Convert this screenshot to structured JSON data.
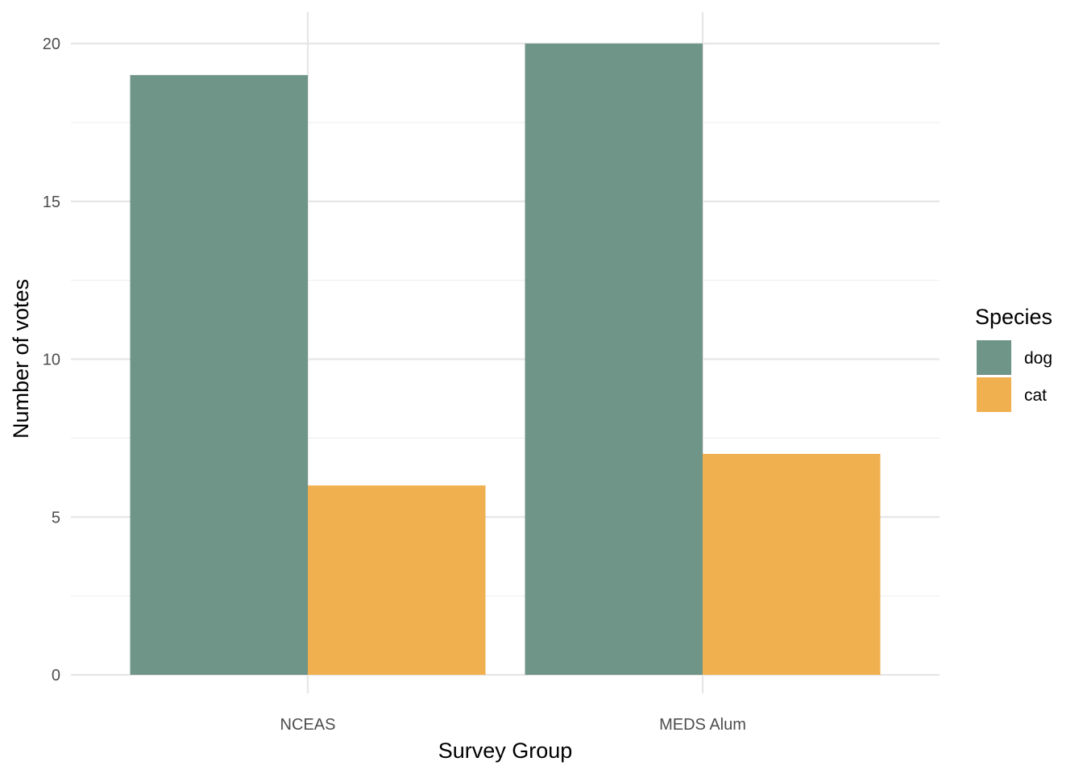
{
  "chart_data": {
    "type": "bar",
    "categories": [
      "NCEAS",
      "MEDS Alum"
    ],
    "series": [
      {
        "name": "dog",
        "values": [
          19,
          20
        ],
        "color": "#6f9488"
      },
      {
        "name": "cat",
        "values": [
          6,
          7
        ],
        "color": "#f1b04f"
      }
    ],
    "xlabel": "Survey Group",
    "ylabel": "Number of votes",
    "ylim": [
      0,
      20.5
    ],
    "yticks": [
      0,
      5,
      10,
      15,
      20
    ],
    "y_minor_ticks": [
      2.5,
      7.5,
      12.5,
      17.5
    ],
    "legend": {
      "title": "Species",
      "position": "right"
    },
    "grid": true
  }
}
